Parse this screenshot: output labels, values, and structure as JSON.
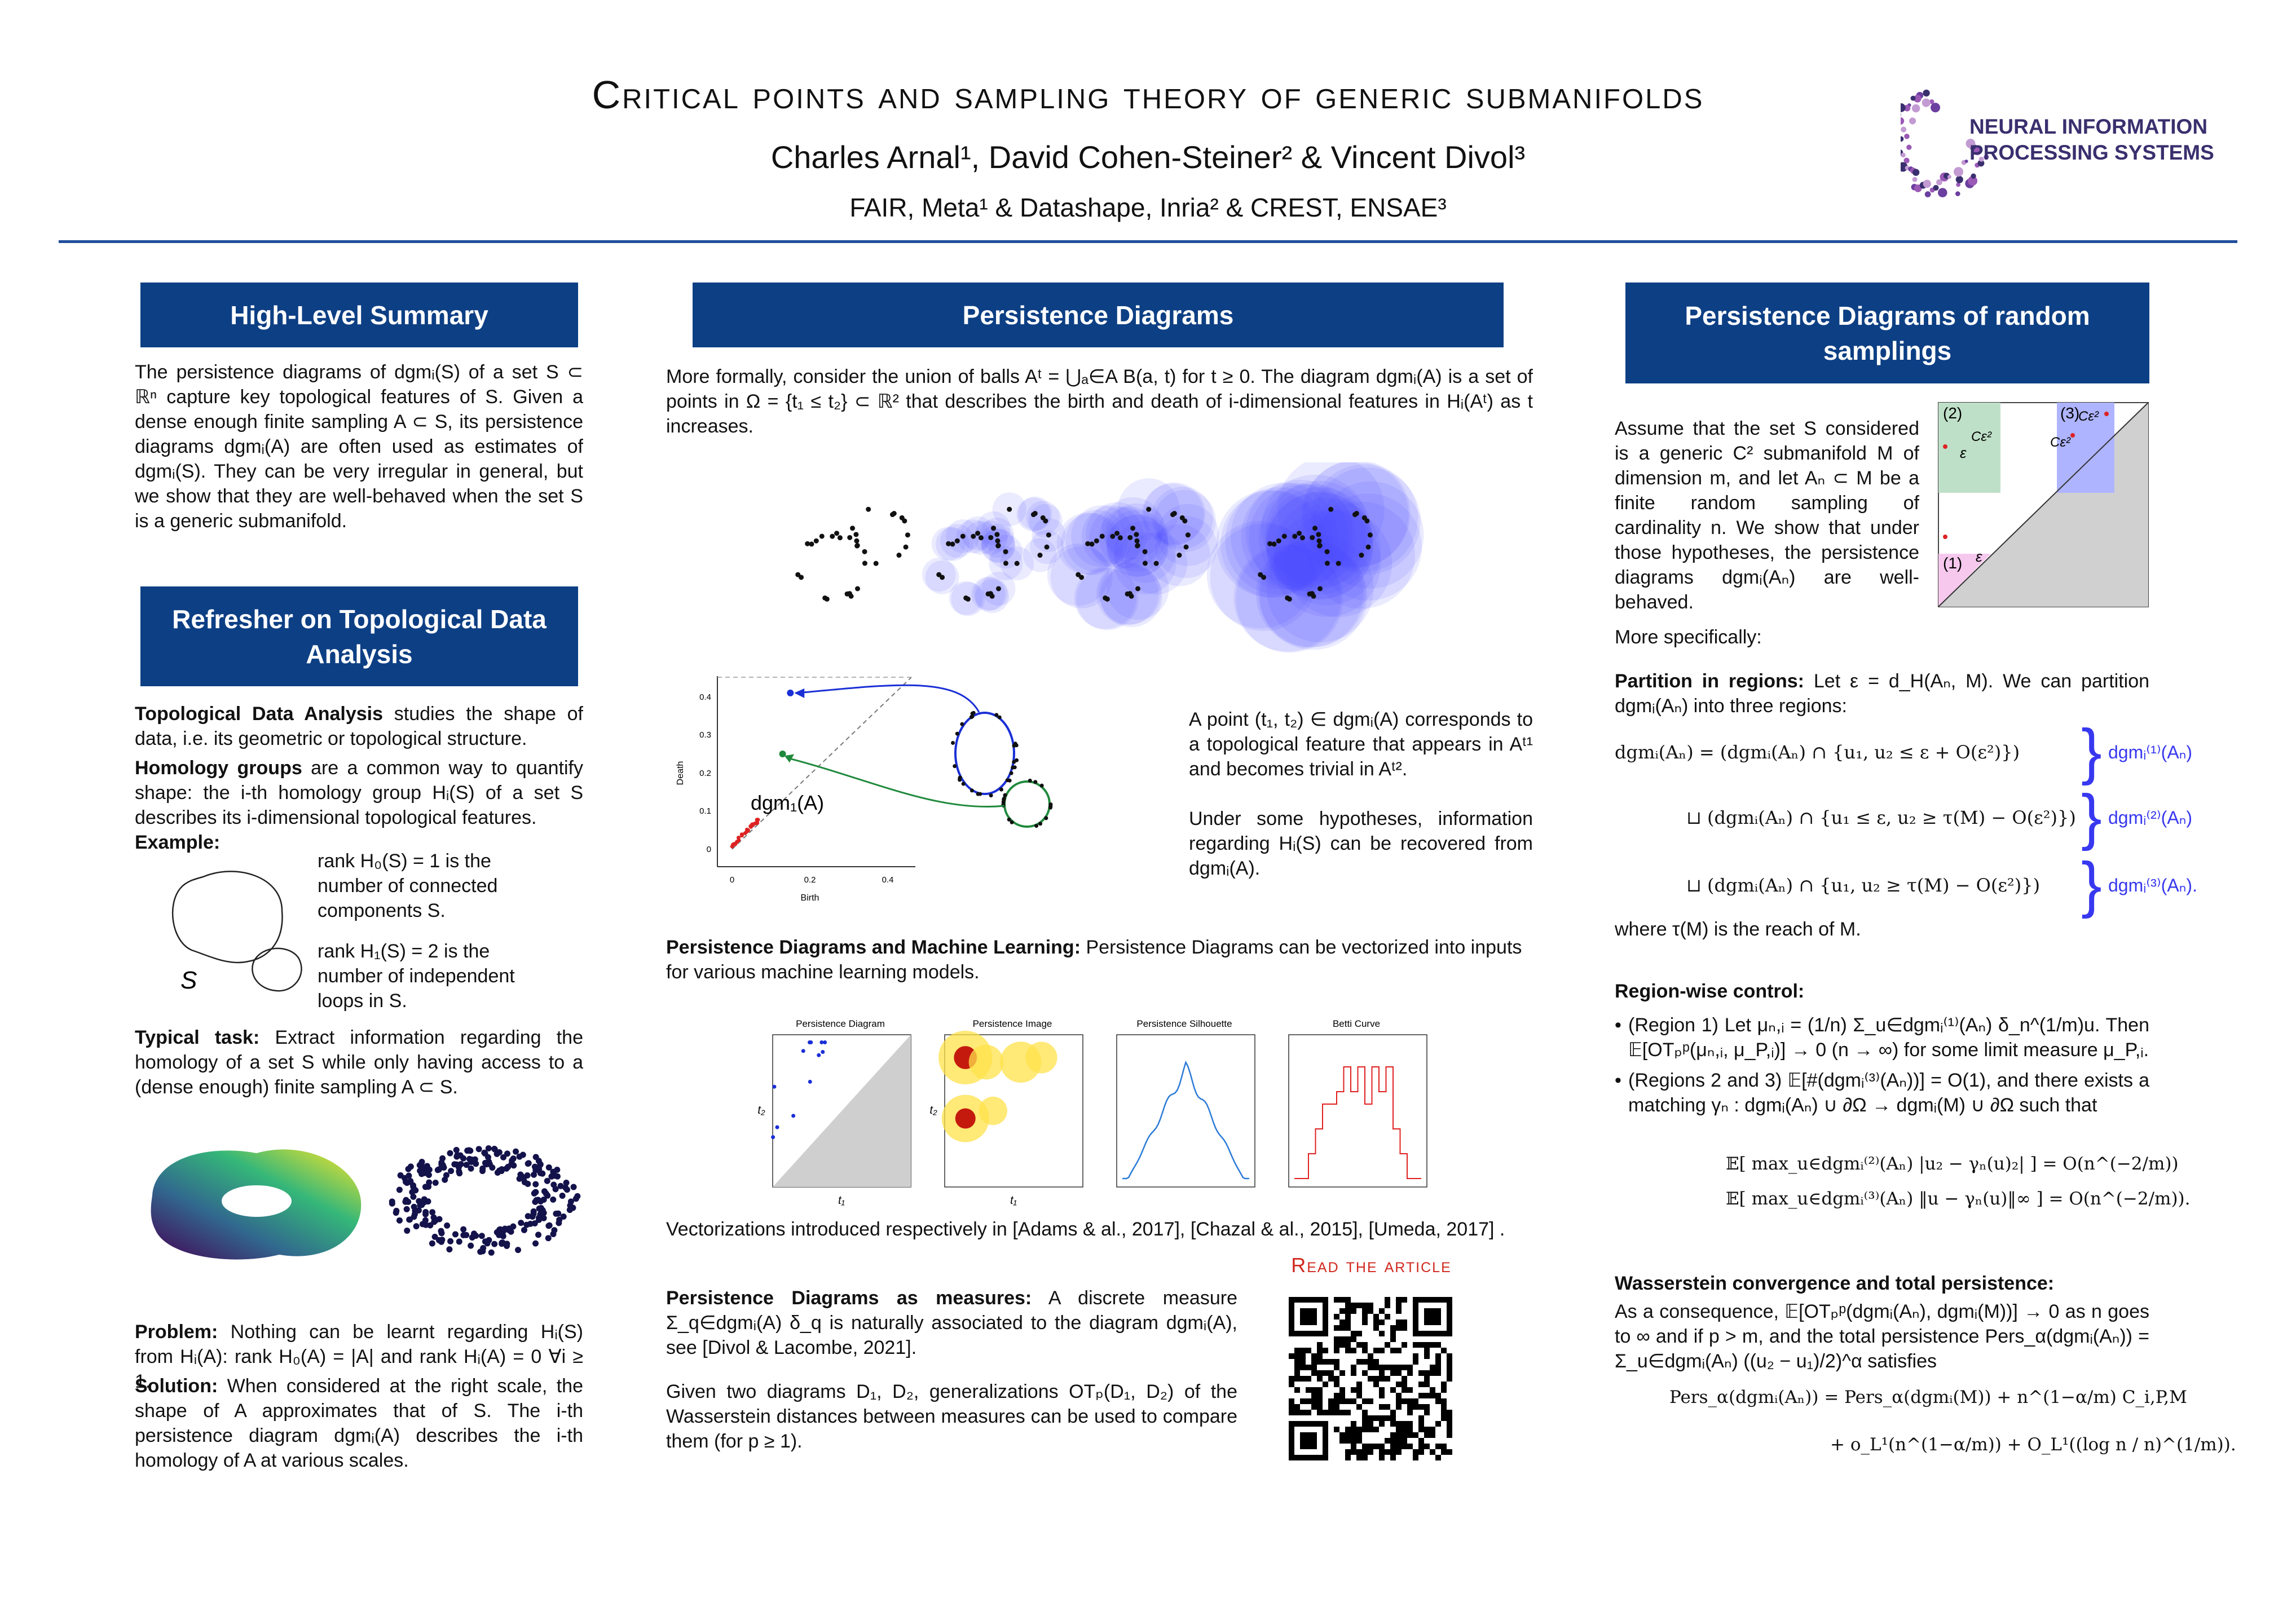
{
  "header": {
    "title": "Critical points and sampling theory of generic submanifolds",
    "authors": "Charles Arnal¹, David Cohen-Steiner² & Vincent Divol³",
    "affiliations": "FAIR, Meta¹ & Datashape, Inria² & CREST, ENSAE³",
    "logo": [
      "NEURAL INFORMATION",
      "PROCESSING SYSTEMS"
    ]
  },
  "left": {
    "summary": {
      "heading": "High-Level Summary",
      "text": "The persistence diagrams of dgmᵢ(S) of a set S ⊂ ℝⁿ capture key topological features of S. Given a dense enough finite sampling A ⊂ S, its persistence diagrams dgmᵢ(A) are often used as estimates of dgmᵢ(S). They can be very irregular in general, but we show that they are well-behaved when the set S is a generic submanifold."
    },
    "refresher": {
      "heading": "Refresher on Topological Data Analysis",
      "paragraphs": [
        {
          "lead": "Topological Data Analysis",
          "text": " studies the shape of data, i.e. its geometric or topological structure."
        },
        {
          "lead": "Homology groups",
          "text": " are a common way to quantify shape: the i-th homology group Hᵢ(S) of a set S describes its i-dimensional topological features."
        }
      ],
      "example_label": "Example:",
      "example": [
        "rank H₀(S) = 1 is the number of connected components S.",
        "rank H₁(S) = 2 is the number of independent loops in S."
      ],
      "figure_label": "S",
      "task": {
        "lead": "Typical task:",
        "text": " Extract information regarding the homology of a set S while only having access to a (dense enough) finite sampling A ⊂ S."
      },
      "problem": {
        "lead": "Problem:",
        "text": " Nothing can be learnt regarding Hᵢ(S) from Hᵢ(A): rank H₀(A) = |A| and rank Hᵢ(A) = 0 ∀i ≥ 1."
      },
      "solution": {
        "lead": "Solution:",
        "text": " When considered at the right scale, the shape of A approximates that of S. The i-th persistence diagram dgmᵢ(A) describes the i-th homology of A at various scales."
      }
    }
  },
  "middle": {
    "heading": "Persistence Diagrams",
    "intro": "More formally, consider the union of balls Aᵗ = ⋃ₐ∈A B(a, t) for t ≥ 0. The diagram dgmᵢ(A) is a set of points in Ω = {t₁ ≤ t₂} ⊂ ℝ² that describes the birth and death of i-dimensional features in Hᵢ(Aᵗ) as t increases.",
    "diagram": {
      "xlabel": "Birth",
      "ylabel": "Death",
      "label": "dgm₁(A)",
      "xticks": [
        "0",
        "0.2",
        "0.4"
      ],
      "yticks": [
        "0",
        "0.1",
        "0.2",
        "0.3",
        "0.4"
      ]
    },
    "point_text": "A point (t₁, t₂) ∈ dgmᵢ(A) corresponds to a topological feature that appears in Aᵗ¹ and becomes trivial in Aᵗ².",
    "hypothesis": "Under some hypotheses, information regarding Hᵢ(S) can be recovered from dgmᵢ(A).",
    "ml": {
      "lead": "Persistence Diagrams and Machine Learning:",
      "text": " Persistence Diagrams can be vectorized into inputs for various machine learning models."
    },
    "vectorizations": {
      "titles": [
        "Persistence Diagram",
        "Persistence Image",
        "Persistence Silhouette",
        "Betti Curve"
      ],
      "xlabel": "t₁",
      "ylabel": "t₂"
    },
    "references": "Vectorizations introduced respectively in [Adams & al., 2017], [Chazal & al., 2015], [Umeda, 2017] .",
    "measures": {
      "lead": "Persistence Diagrams as measures:",
      "text": " A discrete measure Σ_q∈dgmᵢ(A) δ_q is naturally associated to the diagram dgmᵢ(A), see [Divol & Lacombe, 2021]."
    },
    "wasserstein": "Given two diagrams D₁, D₂, generalizations OTₚ(D₁, D₂) of the Wasserstein distances between measures can be used to compare them (for p ≥ 1).",
    "qr_label": "Read the article"
  },
  "right": {
    "heading": "Persistence Diagrams of random samplings",
    "intro": "Assume that the set S considered is a generic C² submanifold M of dimension m, and let Aₙ ⊂ M be a finite random sampling of cardinality n. We show that under those hypotheses, the persistence diagrams dgmᵢ(Aₙ) are well-behaved.",
    "region_labels": [
      "(1)",
      "ε",
      "(2)",
      "ε",
      "Cε²",
      "(3)",
      "Cε²",
      "Cε²"
    ],
    "more": "More specifically:",
    "partition": {
      "lead": "Partition in regions:",
      "text": " Let ε = d_H(Aₙ, M). We can partition dgmᵢ(Aₙ) into three regions:"
    },
    "equations": [
      {
        "expr": "dgmᵢ(Aₙ) = (dgmᵢ(Aₙ) ∩ {u₁, u₂ ≤ ε + O(ε²)})",
        "label": "dgmᵢ⁽¹⁾(Aₙ)"
      },
      {
        "expr": "⊔ (dgmᵢ(Aₙ) ∩ {u₁ ≤ ε, u₂ ≥ τ(M) − O(ε²)})",
        "label": "dgmᵢ⁽²⁾(Aₙ)"
      },
      {
        "expr": "⊔ (dgmᵢ(Aₙ) ∩ {u₁, u₂ ≥ τ(M) − O(ε²)})",
        "label": "dgmᵢ⁽³⁾(Aₙ)."
      }
    ],
    "reach": "where τ(M) is the reach of M.",
    "control_heading": "Region-wise control:",
    "bullets": [
      "(Region 1) Let μₙ,ᵢ = (1/n) Σ_u∈dgmᵢ⁽¹⁾(Aₙ) δ_n^(1/m)u. Then 𝔼[OTₚᵖ(μₙ,ᵢ, μ_P,ᵢ)] → 0 (n → ∞) for some limit measure μ_P,ᵢ.",
      "(Regions 2 and 3) 𝔼[#(dgmᵢ⁽³⁾(Aₙ))] = O(1), and there exists a matching γₙ : dgmᵢ(Aₙ) ∪ ∂Ω → dgmᵢ(M) ∪ ∂Ω such that"
    ],
    "control_eqs": [
      "𝔼[ max_u∈dgmᵢ⁽²⁾(Aₙ) |u₂ − γₙ(u)₂| ] = O(n^(−2/m))",
      "𝔼[ max_u∈dgmᵢ⁽³⁾(Aₙ) ‖u − γₙ(u)‖∞ ] = O(n^(−2/m))."
    ],
    "wass_heading": "Wasserstein convergence and total persistence:",
    "wass_text": "As a consequence, 𝔼[OTₚᵖ(dgmᵢ(Aₙ), dgmᵢ(M))] → 0 as n goes to ∞ and if p > m, and the total persistence Pers_α(dgmᵢ(Aₙ)) = Σ_u∈dgmᵢ(Aₙ) ((u₂ − u₁)/2)^α satisfies",
    "final_eqs": [
      "Pers_α(dgmᵢ(Aₙ)) = Pers_α(dgmᵢ(M)) + n^(1−α/m) C_i,P,M",
      "+ o_L¹(n^(1−α/m)) + O_L¹((log n / n)^(1/m))."
    ]
  }
}
